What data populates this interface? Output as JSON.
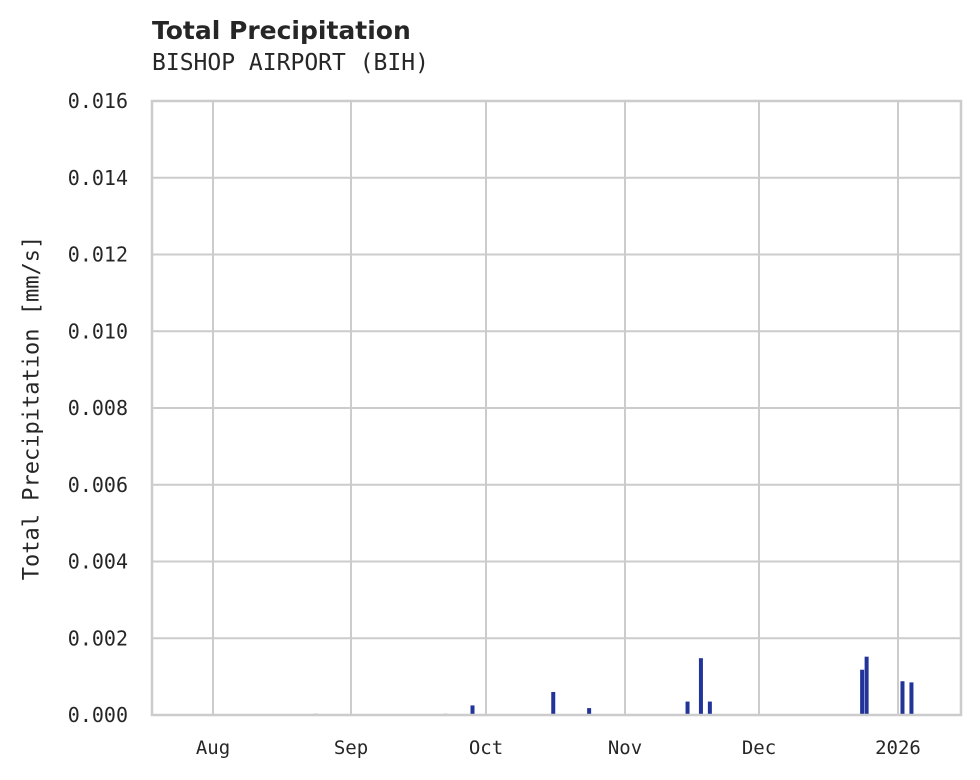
{
  "header": {
    "title": "Total Precipitation",
    "subtitle": "BISHOP AIRPORT (BIH)"
  },
  "colors": {
    "bar": "#22349a",
    "grid": "#cccccc",
    "text": "#262626"
  },
  "chart_data": {
    "type": "area",
    "title": "Total Precipitation",
    "subtitle": "BISHOP AIRPORT (BIH)",
    "xlabel": "",
    "ylabel": "Total Precipitation [mm/s]",
    "ylim": [
      0,
      0.016
    ],
    "yticks": [
      "0.000",
      "0.002",
      "0.004",
      "0.006",
      "0.008",
      "0.010",
      "0.012",
      "0.014",
      "0.016"
    ],
    "xticks": [
      "Aug",
      "Sep",
      "Oct",
      "Nov",
      "Dec",
      "2026"
    ],
    "grid": true,
    "legend": null,
    "points": [
      {
        "date": "2025-08-24",
        "value": 3e-05
      },
      {
        "date": "2025-09-22",
        "value": 3e-05
      },
      {
        "date": "2025-09-28",
        "value": 0.00025
      },
      {
        "date": "2025-10-16",
        "value": 0.0006
      },
      {
        "date": "2025-10-24",
        "value": 0.00018
      },
      {
        "date": "2025-11-15",
        "value": 0.00035
      },
      {
        "date": "2025-11-18",
        "value": 0.00148
      },
      {
        "date": "2025-11-20",
        "value": 0.00035
      },
      {
        "date": "2025-12-24",
        "value": 0.00118
      },
      {
        "date": "2025-12-25",
        "value": 0.00152
      },
      {
        "date": "2026-01-02",
        "value": 0.00088
      },
      {
        "date": "2026-01-04",
        "value": 0.00085
      }
    ]
  }
}
